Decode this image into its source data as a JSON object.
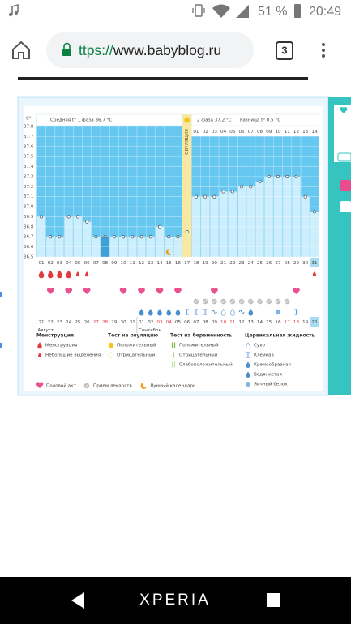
{
  "status_bar": {
    "battery": "51 %",
    "time": "20:49"
  },
  "browser": {
    "url_scheme": "ttps://",
    "url_host": "www.babyblog.ru",
    "tab_count": "3"
  },
  "chart_data": {
    "type": "line",
    "y_unit": "C°",
    "annotations": {
      "phase1_avg": "Средняя t° 1 фаза 36.7 °C",
      "ovulation": "ОВУЛЯЦИЯ",
      "phase2_avg": "2 фаза 37.2 °C",
      "difference": "Разница t° 0.5 °C"
    },
    "categories": [
      "01",
      "02",
      "03",
      "04",
      "05",
      "06",
      "07",
      "08",
      "09",
      "10",
      "11",
      "12",
      "13",
      "14",
      "15",
      "16",
      "17",
      "18",
      "19",
      "20",
      "21",
      "22",
      "23",
      "24",
      "25",
      "26",
      "27",
      "28",
      "29",
      "30",
      "31"
    ],
    "phase2_days": [
      "01",
      "02",
      "03",
      "04",
      "05",
      "06",
      "07",
      "08",
      "09",
      "10",
      "11",
      "12",
      "13",
      "14"
    ],
    "dates": [
      "21",
      "22",
      "23",
      "24",
      "25",
      "26",
      "27",
      "28",
      "29",
      "30",
      "31",
      "01",
      "02",
      "03",
      "04",
      "05",
      "06",
      "07",
      "08",
      "09",
      "10",
      "11",
      "12",
      "13",
      "14",
      "15",
      "16",
      "17",
      "18",
      "19",
      "20"
    ],
    "months": [
      "Август",
      "Сентябрь"
    ],
    "values": [
      36.9,
      36.7,
      36.7,
      36.9,
      36.9,
      36.85,
      36.7,
      36.7,
      36.7,
      36.7,
      36.7,
      36.7,
      36.7,
      36.8,
      36.7,
      36.7,
      36.75,
      37.1,
      37.1,
      37.1,
      37.15,
      37.15,
      37.2,
      37.2,
      37.25,
      37.3,
      37.3,
      37.3,
      37.3,
      37.1,
      36.95
    ],
    "color": "#555555",
    "ylim": [
      36.5,
      37.8
    ],
    "yticks": [
      36.5,
      36.6,
      36.7,
      36.8,
      36.9,
      {
        "value": 37,
        "label": "37.0"
      },
      37.1,
      37.2,
      37.3,
      37.4,
      37.5,
      37.6,
      37.7,
      37.8
    ],
    "grid": true
  },
  "legend": {
    "groups": [
      {
        "title": "Менструация",
        "items": [
          "Менструация",
          "Небольшие выделения"
        ]
      },
      {
        "title": "Тест на овуляцию",
        "items": [
          "Положительный",
          "Отрицательный"
        ]
      },
      {
        "title": "Тест на беременность",
        "items": [
          "Положительный",
          "Отрицательный",
          "Слабоположительный"
        ]
      },
      {
        "title": "Цервикальная жидкость",
        "items": [
          "Сухо",
          "Клейкая",
          "Кремообразная",
          "Водянистая",
          "Яичный белок"
        ]
      }
    ],
    "extras": [
      "Половой акт",
      "Прием лекарств",
      "Лунный календарь"
    ]
  },
  "nav_bar": {
    "brand": "XPERIA"
  }
}
